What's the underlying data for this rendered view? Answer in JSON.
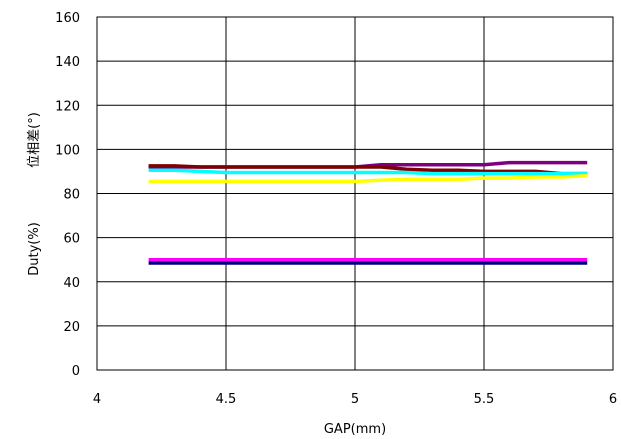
{
  "chart_data": {
    "type": "line",
    "title": "",
    "xlabel": "GAP(mm)",
    "ylabel_parts": [
      "Duty(%)",
      "位相差(°)"
    ],
    "xlim": [
      4,
      6
    ],
    "ylim": [
      0,
      160
    ],
    "x_ticks": [
      4,
      4.5,
      5,
      5.5,
      6
    ],
    "x_tick_labels": [
      "4",
      "4.5",
      "5",
      "5.5",
      "6"
    ],
    "y_ticks": [
      0,
      20,
      40,
      60,
      80,
      100,
      120,
      140,
      160
    ],
    "y_tick_labels": [
      "0",
      "20",
      "40",
      "60",
      "80",
      "100",
      "120",
      "140",
      "160"
    ],
    "grid": true,
    "legend": "none",
    "x": [
      4.2,
      4.3,
      4.4,
      4.5,
      4.6,
      4.7,
      4.8,
      4.9,
      5.0,
      5.1,
      5.2,
      5.3,
      5.4,
      5.5,
      5.6,
      5.7,
      5.8,
      5.9
    ],
    "series": [
      {
        "color": "#7f007f",
        "values": [
          92,
          92,
          92,
          92,
          92,
          92,
          92,
          92,
          92,
          93,
          93,
          93,
          93,
          93,
          94,
          94,
          94,
          94
        ]
      },
      {
        "color": "#7f0000",
        "values": [
          92.5,
          92.5,
          92,
          92,
          92,
          92,
          92,
          92,
          92,
          92,
          91,
          90.5,
          90.5,
          90,
          90,
          90,
          89,
          89
        ]
      },
      {
        "color": "#00ffff",
        "values": [
          90.5,
          90.5,
          90,
          89.5,
          89.5,
          89.5,
          89.5,
          89.5,
          89.5,
          89.5,
          89.5,
          89,
          89,
          89,
          89,
          89,
          89,
          89
        ]
      },
      {
        "color": "#ffff00",
        "values": [
          85.5,
          85.5,
          85.5,
          85.5,
          85.5,
          85.5,
          85.5,
          85.5,
          85.5,
          86,
          86.5,
          86.5,
          86.5,
          87,
          87,
          87.5,
          87.5,
          88
        ]
      },
      {
        "color": "#000080",
        "values": [
          48.5,
          48.5,
          48.5,
          48.5,
          48.5,
          48.5,
          48.5,
          48.5,
          48.5,
          48.5,
          48.5,
          48.5,
          48.5,
          48.5,
          48.5,
          48.5,
          48.5,
          48.5
        ]
      },
      {
        "color": "#ff00ff",
        "values": [
          50,
          50,
          50,
          50,
          50,
          50,
          50,
          50,
          50,
          50,
          50,
          50,
          50,
          50,
          50,
          50,
          50,
          50
        ]
      }
    ]
  }
}
